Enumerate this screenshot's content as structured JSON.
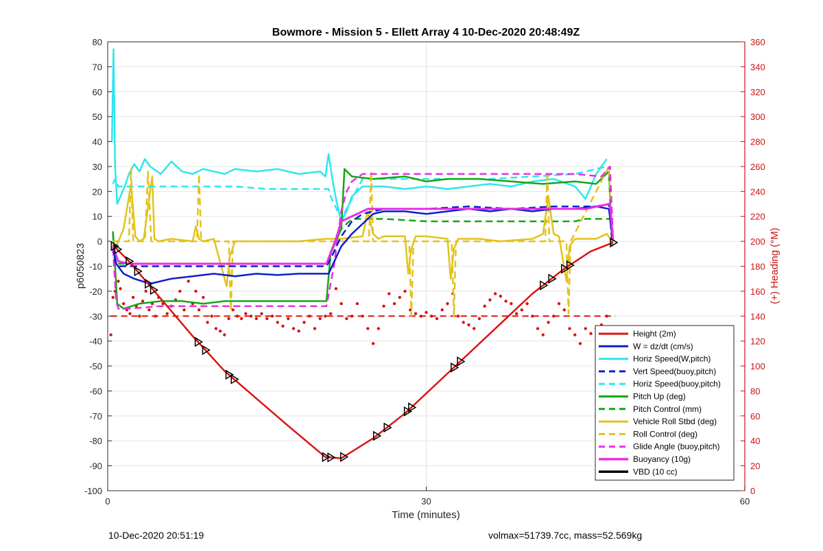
{
  "footer": {
    "timestamp": "10-Dec-2020 20:51:19",
    "summary": "volmax=51739.7cc, mass=52.569kg"
  },
  "chart_data": {
    "type": "line",
    "title": "Bowmore - Mission 5 - Ellett Array 4 10-Dec-2020 20:48:49Z",
    "xlabel": "Time (minutes)",
    "ylabel": "p6050823",
    "y2label": "(+) Heading (°M)",
    "xlim": [
      0,
      60
    ],
    "ylim": [
      -100,
      80
    ],
    "y2lim": [
      0,
      360
    ],
    "x_ticks": [
      0,
      30,
      60
    ],
    "y_ticks": [
      -100,
      -90,
      -80,
      -70,
      -60,
      -50,
      -40,
      -30,
      -20,
      -10,
      0,
      10,
      20,
      30,
      40,
      50,
      60,
      70,
      80
    ],
    "y2_ticks": [
      0,
      20,
      40,
      60,
      80,
      100,
      120,
      140,
      160,
      180,
      200,
      220,
      240,
      260,
      280,
      300,
      320,
      340,
      360
    ],
    "grid": true,
    "legend_position": "bottom-right",
    "colors": {
      "red": "#d9140f",
      "blue": "#0a1ecc",
      "cyan": "#2ee6ef",
      "green": "#13a613",
      "yellow": "#e3c21b",
      "magenta": "#e62ee6",
      "black": "#000000",
      "right_axis": "#cc1111"
    },
    "series": [
      {
        "name": "Height (2m)",
        "color": "#d9140f",
        "dash": false,
        "width": 2.5,
        "x": [
          0.5,
          2,
          5,
          8,
          11,
          14,
          17,
          20.5,
          22,
          25,
          28,
          31,
          34,
          37,
          40,
          43,
          45.5,
          47.6
        ],
        "y": [
          -1.5,
          -8,
          -23,
          -38,
          -52,
          -63,
          -74,
          -86.5,
          -87,
          -79,
          -69,
          -57,
          -45,
          -33,
          -21,
          -11,
          -4,
          -0.5
        ]
      },
      {
        "name": "W = dz/dt (cm/s)",
        "color": "#0a1ecc",
        "dash": false,
        "width": 2.5,
        "x": [
          0.5,
          0.8,
          1.5,
          2.5,
          4,
          6,
          8,
          10,
          12,
          14,
          16,
          18,
          20,
          20.8,
          22,
          23,
          24,
          25,
          26,
          28,
          30,
          32,
          34,
          36,
          38,
          40,
          42,
          44,
          46,
          47.2,
          47.6
        ],
        "y": [
          -2,
          -9,
          -13,
          -15,
          -17,
          -15,
          -14,
          -13,
          -14,
          -13,
          -13.5,
          -13,
          -13,
          -13,
          -2,
          3,
          7,
          11,
          12,
          12,
          11,
          12,
          13,
          12,
          13,
          12,
          13,
          13,
          14,
          13,
          0
        ]
      },
      {
        "name": "Horiz Speed(W,pitch)",
        "color": "#2ee6ef",
        "dash": false,
        "width": 2.5,
        "x": [
          0.4,
          0.55,
          0.7,
          0.9,
          1.2,
          1.6,
          2,
          2.5,
          3,
          3.5,
          4,
          5,
          6,
          7,
          8,
          9,
          10,
          11,
          12,
          14,
          16,
          18,
          20,
          20.5,
          20.8,
          21.2,
          21.6,
          22,
          22.5,
          23,
          24,
          26,
          28,
          30,
          32,
          34,
          36,
          38,
          40,
          42,
          44,
          45,
          46,
          47
        ],
        "y": [
          40,
          77,
          30,
          15,
          18,
          22,
          27,
          31,
          28,
          33,
          30,
          27,
          32,
          28,
          27,
          29,
          28,
          27,
          29,
          28,
          29,
          27,
          28,
          26,
          35,
          24,
          15,
          8,
          12,
          18,
          22,
          22,
          21,
          22,
          21,
          22,
          23,
          22,
          24,
          25,
          22,
          17,
          27,
          33
        ]
      },
      {
        "name": "Vert Speed(buoy,pitch)",
        "color": "#0a1ecc",
        "dash": true,
        "width": 2.5,
        "x": [
          0.5,
          0.7,
          1,
          3,
          6,
          9,
          12,
          15,
          18,
          20.6,
          21,
          22,
          23,
          24,
          26,
          30,
          34,
          38,
          42,
          46,
          47.2,
          47.5
        ],
        "y": [
          -2,
          -8,
          -10,
          -10,
          -10,
          -10,
          -10,
          -10,
          -10,
          -10,
          -7,
          2,
          8,
          11,
          13,
          13,
          14,
          13,
          14,
          14,
          15,
          0
        ]
      },
      {
        "name": "Horiz Speed(buoy,pitch)",
        "color": "#2ee6ef",
        "dash": true,
        "width": 2.5,
        "x": [
          0.5,
          0.7,
          1,
          3,
          6,
          9,
          12,
          15,
          18,
          20.8,
          21,
          22,
          24,
          28,
          32,
          36,
          40,
          44,
          47
        ],
        "y": [
          23,
          25,
          22,
          22,
          22,
          22,
          22,
          21,
          21,
          21,
          18,
          9,
          25,
          25,
          25,
          25,
          26,
          27,
          30
        ]
      },
      {
        "name": "Pitch Up (deg)",
        "color": "#13a613",
        "dash": false,
        "width": 2.5,
        "x": [
          0.5,
          0.7,
          0.9,
          1.5,
          3,
          5,
          7,
          9,
          11,
          13,
          15,
          17,
          19,
          20.6,
          21,
          21.5,
          22,
          22.3,
          23,
          25,
          28,
          30,
          32,
          35,
          38,
          41,
          44,
          46,
          47.2,
          47.5
        ],
        "y": [
          4,
          -10,
          -25,
          -27,
          -25,
          -24,
          -24,
          -25,
          -24,
          -24,
          -24,
          -24,
          -24,
          -24,
          -5,
          0,
          5,
          29,
          26,
          25,
          26,
          24,
          25,
          25,
          24,
          23,
          24,
          23,
          28,
          -2
        ]
      },
      {
        "name": "Pitch Control (mm)",
        "color": "#13a613",
        "dash": true,
        "width": 2.5,
        "x": [
          0.5,
          0.7,
          1,
          4,
          8,
          12,
          16,
          20.6,
          21.3,
          22,
          23,
          26,
          30,
          35,
          40,
          44,
          45,
          47.3,
          47.6
        ],
        "y": [
          3,
          -9,
          -9,
          -9,
          -9,
          -9,
          -9,
          -9,
          -1,
          5,
          9,
          9,
          8,
          8,
          8,
          8,
          9,
          9,
          0
        ]
      },
      {
        "name": "Vehicle Roll Stbd (deg)",
        "color": "#e3c21b",
        "dash": false,
        "width": 2.5,
        "x": [
          0.5,
          0.7,
          1,
          1.5,
          2.2,
          2.6,
          3,
          3.4,
          4,
          4.2,
          4.4,
          4.8,
          6,
          8,
          8.3,
          8.6,
          9,
          10,
          11.2,
          11.5,
          12,
          15,
          18,
          20.5,
          22,
          24,
          24.5,
          25,
          25.5,
          26,
          28,
          28.3,
          28.6,
          29,
          30,
          32,
          32.3,
          32.6,
          33,
          35,
          37,
          40,
          41,
          41.5,
          42,
          42.5,
          43.2,
          43.5,
          44,
          46,
          47,
          47.5
        ],
        "y": [
          -1,
          -3,
          0,
          5,
          23,
          2,
          0,
          1,
          20,
          26,
          1,
          0,
          1,
          0,
          6,
          1,
          0,
          1,
          -18,
          -6,
          0,
          0,
          0,
          1,
          1,
          2,
          12,
          3,
          1,
          2,
          2,
          -13,
          -3,
          2,
          2,
          1,
          -15,
          -3,
          1,
          1,
          0,
          1,
          3,
          18,
          3,
          2,
          -16,
          -2,
          1,
          1,
          3,
          0
        ]
      },
      {
        "name": "Roll Control (deg)",
        "color": "#e3c21b",
        "dash": true,
        "width": 2.5,
        "x": [
          0.5,
          1,
          2,
          2.2,
          2.4,
          2.8,
          3.5,
          3.8,
          4.1,
          6,
          8.4,
          8.6,
          8.8,
          11.4,
          11.6,
          11.8,
          20.5,
          22,
          24.6,
          24.8,
          25,
          28.4,
          28.6,
          28.8,
          32.4,
          32.6,
          32.8,
          41.2,
          41.4,
          41.6,
          43.2,
          43.4,
          43.6,
          47.2,
          47.5
        ],
        "y": [
          0,
          0,
          0,
          29,
          0,
          0,
          0,
          28,
          0,
          0,
          0,
          27,
          0,
          0,
          -28,
          0,
          0,
          0,
          0,
          28,
          0,
          0,
          -30,
          0,
          0,
          -30,
          0,
          0,
          28,
          0,
          0,
          -29,
          0,
          30,
          0
        ]
      },
      {
        "name": "Glide Angle (buoy,pitch)",
        "color": "#e62ee6",
        "dash": true,
        "width": 2.5,
        "x": [
          0.5,
          0.8,
          1,
          2,
          5,
          9,
          13,
          17,
          20.6,
          21.3,
          22,
          22.5,
          23,
          24,
          28,
          32,
          36,
          40,
          44,
          46.5,
          47.3,
          47.6
        ],
        "y": [
          -3,
          -24,
          -27,
          -27,
          -26,
          -26,
          -26,
          -26,
          -26,
          -10,
          12,
          20,
          24,
          27,
          27,
          27,
          27,
          27,
          27,
          26,
          30,
          0
        ]
      },
      {
        "name": "Buoyancy (10g)",
        "color": "#e62ee6",
        "dash": false,
        "width": 3,
        "x": [
          0.5,
          1,
          2,
          5,
          10,
          15,
          20.6,
          21.5,
          22,
          24.5,
          30,
          35,
          40,
          45,
          47.3,
          47.6
        ],
        "y": [
          -2,
          -8,
          -9,
          -9,
          -9,
          -9,
          -9,
          1,
          8,
          13,
          13,
          13,
          13,
          13,
          15,
          0
        ]
      },
      {
        "name": "VBD (10 cc)",
        "color": "#000000",
        "dash": false,
        "width": 3,
        "x": [
          0.5,
          1,
          2,
          5,
          10,
          15,
          20.6,
          21.5,
          22,
          24.5,
          30,
          35,
          40,
          45,
          45.5,
          47.3,
          47.6
        ],
        "y": [
          -2,
          -8,
          -8.5,
          -8.5,
          -8.5,
          -8.5,
          -8.5,
          1,
          9,
          12.5,
          12.5,
          12.5,
          12.5,
          12.5,
          15.5,
          15.5,
          0
        ]
      }
    ],
    "heading_points": {
      "color": "#d9140f",
      "x": [
        0.3,
        0.5,
        0.7,
        1,
        1.2,
        1.5,
        1.8,
        2.1,
        2.4,
        2.7,
        3,
        3.3,
        3.6,
        3.9,
        4.2,
        4.5,
        4.8,
        5.2,
        5.6,
        6,
        6.4,
        6.8,
        7.2,
        7.6,
        8,
        8.3,
        8.6,
        9,
        9.4,
        9.8,
        10.2,
        10.6,
        11,
        11.4,
        11.8,
        12.2,
        12.6,
        13,
        13.5,
        14,
        14.5,
        15,
        15.5,
        16,
        16.5,
        17,
        17.5,
        18,
        18.5,
        19,
        19.5,
        20,
        20.5,
        21,
        21.5,
        22,
        22.5,
        23,
        23.5,
        24,
        24.5,
        25,
        25.5,
        26,
        26.5,
        27,
        27.5,
        28,
        28.5,
        29,
        29.5,
        30,
        30.5,
        31,
        31.5,
        32,
        32.5,
        33,
        33.5,
        34,
        34.5,
        35,
        35.5,
        36,
        36.5,
        37,
        37.5,
        38,
        38.5,
        39,
        39.5,
        40,
        40.5,
        41,
        41.5,
        42,
        42.5,
        43,
        43.5,
        44,
        44.5,
        45,
        45.5,
        46,
        46.5,
        47
      ],
      "y": [
        125,
        155,
        160,
        168,
        162,
        150,
        145,
        142,
        155,
        148,
        140,
        152,
        160,
        145,
        150,
        140,
        155,
        150,
        142,
        148,
        153,
        160,
        145,
        168,
        150,
        160,
        145,
        155,
        135,
        140,
        130,
        128,
        125,
        138,
        145,
        140,
        138,
        142,
        140,
        138,
        142,
        138,
        140,
        135,
        132,
        138,
        130,
        128,
        135,
        140,
        130,
        138,
        140,
        142,
        162,
        150,
        138,
        140,
        150,
        140,
        130,
        118,
        130,
        148,
        158,
        150,
        155,
        160,
        145,
        142,
        140,
        143,
        140,
        138,
        145,
        150,
        158,
        140,
        135,
        133,
        130,
        138,
        148,
        153,
        158,
        156,
        152,
        150,
        142,
        145,
        150,
        140,
        130,
        125,
        135,
        140,
        150,
        145,
        130,
        125,
        118,
        130,
        126,
        130,
        133,
        140
      ]
    },
    "heading_reference": {
      "value": 140,
      "color": "#d9140f",
      "dash": true,
      "x": [
        0.3,
        47.8
      ]
    },
    "markers": {
      "on": "Height (2m)",
      "color": "#000000",
      "x": [
        0.6,
        0.9,
        2,
        2.8,
        3.8,
        4.3,
        8.5,
        9.2,
        11.4,
        11.9,
        20.5,
        21,
        22.2,
        25.3,
        26.3,
        28.2,
        28.6,
        32.6,
        33.2,
        41,
        41.8,
        43,
        43.5,
        47.6
      ]
    }
  }
}
